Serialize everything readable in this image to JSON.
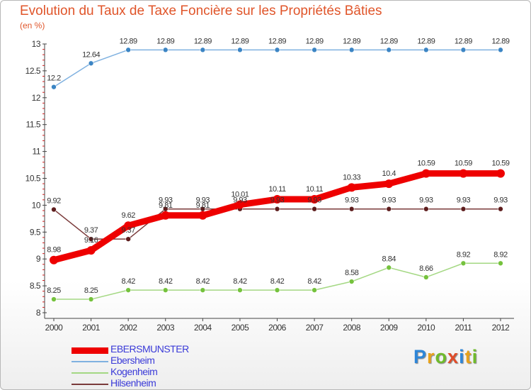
{
  "title": "Evolution du Taux de Taxe Foncière sur les Propriétés Bâties",
  "unit_label": "(en %)",
  "logo": {
    "text": "Proxiti",
    "colors": [
      "#2e86d8",
      "#e8a21a",
      "#6fbb2b",
      "#e04d2a",
      "#2e86d8",
      "#e8a21a",
      "#6fbb2b"
    ]
  },
  "chart_data": {
    "type": "line",
    "title": "Evolution du Taux de Taxe Foncière sur les Propriétés Bâties",
    "ylabel": "(en %)",
    "xlabel": "",
    "x": [
      "2000",
      "2001",
      "2002",
      "2003",
      "2004",
      "2005",
      "2006",
      "2007",
      "2008",
      "2009",
      "2010",
      "2011",
      "2012"
    ],
    "ylim": [
      8,
      13
    ],
    "yticks": [
      "8",
      "8.5",
      "9",
      "9.5",
      "10",
      "10.5",
      "11",
      "11.5",
      "12",
      "12.5",
      "13"
    ],
    "grid": false,
    "legend_position": "bottom-left",
    "series": [
      {
        "name": "EBERSMUNSTER",
        "color": "#ee0000",
        "marker": "#ee0000",
        "width": 9,
        "markerR": 6,
        "values": [
          8.98,
          9.16,
          9.62,
          9.81,
          9.81,
          10.01,
          10.11,
          10.11,
          10.33,
          10.4,
          10.59,
          10.59,
          10.59
        ],
        "labels": [
          "8.98",
          "9.16",
          "9.62",
          "9.81",
          "9.81",
          "10.01",
          "10.11",
          "10.11",
          "10.33",
          "10.4",
          "10.59",
          "10.59",
          "10.59"
        ]
      },
      {
        "name": "Ebersheim",
        "color": "#7fb1e0",
        "marker": "#3c85c4",
        "width": 1.5,
        "markerR": 3.5,
        "values": [
          12.2,
          12.64,
          12.89,
          12.89,
          12.89,
          12.89,
          12.89,
          12.89,
          12.89,
          12.89,
          12.89,
          12.89,
          12.89
        ],
        "labels": [
          "12.2",
          "12.64",
          "12.89",
          "12.89",
          "12.89",
          "12.89",
          "12.89",
          "12.89",
          "12.89",
          "12.89",
          "12.89",
          "12.89",
          "12.89"
        ]
      },
      {
        "name": "Kogenheim",
        "color": "#a4d883",
        "marker": "#75c23d",
        "width": 1.5,
        "markerR": 3.5,
        "values": [
          8.25,
          8.25,
          8.42,
          8.42,
          8.42,
          8.42,
          8.42,
          8.42,
          8.58,
          8.84,
          8.66,
          8.92,
          8.92
        ],
        "labels": [
          "8.25",
          "8.25",
          "8.42",
          "8.42",
          "8.42",
          "8.42",
          "8.42",
          "8.42",
          "8.58",
          "8.84",
          "8.66",
          "8.92",
          "8.92"
        ]
      },
      {
        "name": "Hilsenheim",
        "color": "#7a3a3a",
        "marker": "#5e1d1d",
        "width": 1.5,
        "markerR": 3.5,
        "values": [
          9.92,
          9.37,
          9.37,
          9.93,
          9.93,
          9.93,
          9.93,
          9.93,
          9.93,
          9.93,
          9.93,
          9.93,
          9.93
        ],
        "labels": [
          "9.92",
          "9.37",
          "9.37",
          "9.93",
          "9.93",
          "9.93",
          "9.93",
          "9.93",
          "9.93",
          "9.93",
          "9.93",
          "9.93",
          "9.93"
        ]
      }
    ]
  }
}
